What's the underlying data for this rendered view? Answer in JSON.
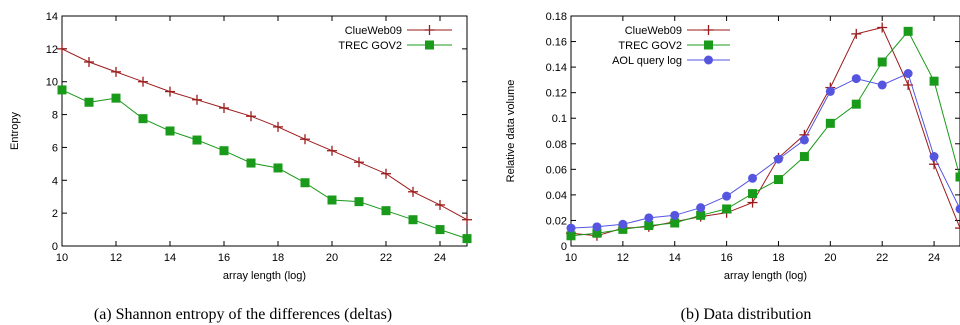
{
  "colors": {
    "clueweb": "#9b1b1b",
    "gov2": "#1a9a1a",
    "aol": "#5555e0"
  },
  "chart_data": [
    {
      "type": "line",
      "caption": "(a) Shannon entropy of the differences (deltas)",
      "xlabel": "array length (log)",
      "ylabel": "Entropy",
      "xlim": [
        10,
        25
      ],
      "ylim": [
        0,
        14
      ],
      "xticks": [
        "10",
        "12",
        "14",
        "16",
        "18",
        "20",
        "22",
        "24"
      ],
      "yticks": [
        "0",
        "2",
        "4",
        "6",
        "8",
        "10",
        "12",
        "14"
      ],
      "grid": false,
      "legend_position": "top-right",
      "x": [
        10,
        11,
        12,
        13,
        14,
        15,
        16,
        17,
        18,
        19,
        20,
        21,
        22,
        23,
        24,
        25
      ],
      "series": [
        {
          "name": "ClueWeb09",
          "marker": "plus",
          "color_key": "clueweb",
          "values": [
            12.0,
            11.2,
            10.6,
            10.0,
            9.4,
            8.9,
            8.4,
            7.9,
            7.25,
            6.5,
            5.8,
            5.1,
            4.4,
            3.3,
            2.5,
            1.6
          ]
        },
        {
          "name": "TREC GOV2",
          "marker": "square",
          "color_key": "gov2",
          "values": [
            9.5,
            8.75,
            9.0,
            7.75,
            7.0,
            6.45,
            5.8,
            5.05,
            4.75,
            3.85,
            2.8,
            2.7,
            2.15,
            1.6,
            1.0,
            0.45
          ]
        }
      ]
    },
    {
      "type": "line",
      "caption": "(b) Data distribution",
      "xlabel": "array length (log)",
      "ylabel": "Relative data volume",
      "xlim": [
        10,
        25
      ],
      "ylim": [
        0,
        0.18
      ],
      "xticks": [
        "10",
        "12",
        "14",
        "16",
        "18",
        "20",
        "22",
        "24"
      ],
      "yticks": [
        "0",
        "0.02",
        "0.04",
        "0.06",
        "0.08",
        "0.1",
        "0.12",
        "0.14",
        "0.16",
        "0.18"
      ],
      "grid": false,
      "legend_position": "top-left",
      "x": [
        10,
        11,
        12,
        13,
        14,
        15,
        16,
        17,
        18,
        19,
        20,
        21,
        22,
        23,
        24,
        25
      ],
      "series": [
        {
          "name": "ClueWeb09",
          "marker": "plus",
          "color_key": "clueweb",
          "values": [
            0.01,
            0.008,
            0.014,
            0.015,
            0.019,
            0.023,
            0.026,
            0.034,
            0.069,
            0.087,
            0.124,
            0.166,
            0.171,
            0.126,
            0.064,
            0.014
          ]
        },
        {
          "name": "TREC GOV2",
          "marker": "square",
          "color_key": "gov2",
          "values": [
            0.008,
            0.01,
            0.013,
            0.016,
            0.018,
            0.024,
            0.029,
            0.041,
            0.052,
            0.07,
            0.096,
            0.111,
            0.144,
            0.168,
            0.129,
            0.054
          ]
        },
        {
          "name": "AOL query log",
          "marker": "circle",
          "color_key": "aol",
          "values": [
            0.014,
            0.015,
            0.017,
            0.022,
            0.024,
            0.03,
            0.039,
            0.053,
            0.068,
            0.083,
            0.121,
            0.131,
            0.126,
            0.135,
            0.07,
            0.029
          ]
        }
      ]
    }
  ]
}
